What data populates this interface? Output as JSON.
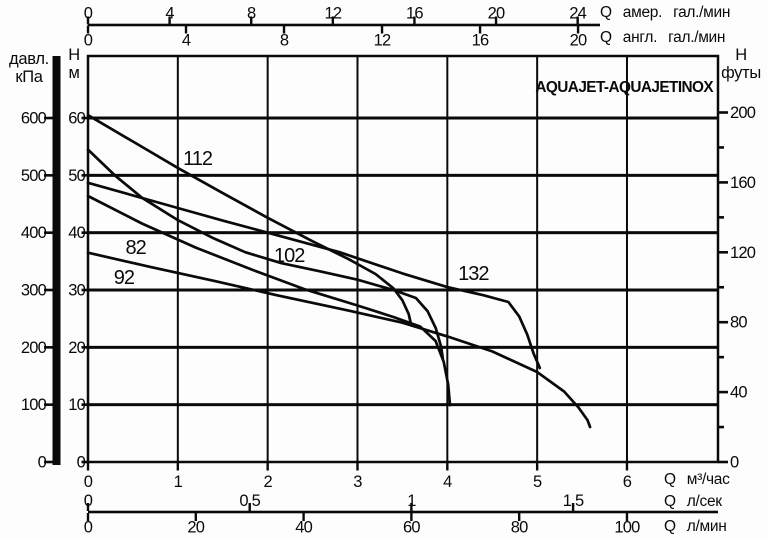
{
  "title": "AQUAJET-AQUAJETINOX",
  "axes": {
    "pressure_kpa": {
      "label_line1": "давл.",
      "label_line2": "кПа",
      "ticks": [
        0,
        100,
        200,
        300,
        400,
        500,
        600
      ]
    },
    "head_m": {
      "label_line1": "H",
      "label_line2": "м",
      "ticks": [
        0,
        10,
        20,
        30,
        40,
        50,
        60
      ]
    },
    "head_ft": {
      "label_line1": "H",
      "label_line2": "футы",
      "major_ticks": [
        0,
        40,
        80,
        120,
        160,
        200
      ],
      "minor_ticks": [
        20,
        60,
        100,
        140,
        180
      ]
    },
    "us_gpm": {
      "label": "Q амер. гал./мин",
      "ticks": [
        0,
        4,
        8,
        12,
        16,
        20,
        24
      ]
    },
    "imp_gpm": {
      "label": "Q англ. гал./мин",
      "ticks": [
        0,
        4,
        8,
        12,
        16,
        20
      ]
    },
    "m3h": {
      "label": "Q м³/час",
      "ticks": [
        0,
        1,
        2,
        3,
        4,
        5,
        6
      ]
    },
    "ls": {
      "label": "Q л/сек",
      "ticks": [
        {
          "v": 0,
          "t": "0"
        },
        {
          "v": 0.5,
          "t": "0,5"
        },
        {
          "v": 1,
          "t": "1"
        },
        {
          "v": 1.5,
          "t": "1,5"
        }
      ]
    },
    "lmin": {
      "label": "Q л/мин",
      "ticks": [
        0,
        20,
        40,
        60,
        80,
        100
      ]
    }
  },
  "chart_data": {
    "type": "line",
    "xlabel": "Q (м³/час)",
    "ylabel": "H (м)",
    "xlim": [
      0,
      7.0
    ],
    "ylim": [
      0,
      70.8
    ],
    "grid": {
      "x_step": 1,
      "y_step": 10
    },
    "line_color": "#0a0a0a",
    "series": [
      {
        "name": "112",
        "points": [
          [
            0,
            60.5
          ],
          [
            0.5,
            55.9
          ],
          [
            1.0,
            51.3
          ],
          [
            1.5,
            46.9
          ],
          [
            2.0,
            42.6
          ],
          [
            2.5,
            38.5
          ],
          [
            2.9,
            35.4
          ],
          [
            3.2,
            32.8
          ],
          [
            3.4,
            30.3
          ],
          [
            3.5,
            28.2
          ],
          [
            3.57,
            25.8
          ],
          [
            3.59,
            24.4
          ]
        ]
      },
      {
        "name": "102",
        "points": [
          [
            0,
            54.5
          ],
          [
            0.3,
            50.0
          ],
          [
            0.6,
            46.1
          ],
          [
            1.0,
            42.2
          ],
          [
            1.4,
            39.0
          ],
          [
            1.75,
            36.6
          ],
          [
            2.15,
            34.7
          ],
          [
            2.6,
            33.2
          ],
          [
            3.0,
            31.8
          ],
          [
            3.4,
            30.0
          ],
          [
            3.65,
            28.6
          ],
          [
            3.78,
            26.3
          ],
          [
            3.87,
            23.4
          ],
          [
            3.93,
            20.2
          ],
          [
            3.95,
            18.1
          ]
        ]
      },
      {
        "name": "132",
        "points": [
          [
            0,
            48.7
          ],
          [
            0.5,
            46.5
          ],
          [
            1.0,
            44.3
          ],
          [
            1.5,
            42.1
          ],
          [
            2.0,
            40.0
          ],
          [
            2.8,
            36.6
          ],
          [
            3.5,
            32.9
          ],
          [
            4.0,
            30.5
          ],
          [
            4.4,
            29.1
          ],
          [
            4.68,
            27.9
          ],
          [
            4.8,
            25.4
          ],
          [
            4.89,
            22.2
          ],
          [
            4.96,
            18.9
          ],
          [
            5.02,
            16.8
          ],
          [
            5.03,
            16.4
          ]
        ]
      },
      {
        "name": "92",
        "points": [
          [
            0,
            46.4
          ],
          [
            0.6,
            41.6
          ],
          [
            1.2,
            37.4
          ],
          [
            1.8,
            33.7
          ],
          [
            2.4,
            30.2
          ],
          [
            3.0,
            27.3
          ],
          [
            3.4,
            25.3
          ],
          [
            3.7,
            23.6
          ],
          [
            3.87,
            21.1
          ],
          [
            3.96,
            17.5
          ],
          [
            4.01,
            13.5
          ],
          [
            4.03,
            9.9
          ]
        ]
      },
      {
        "name": "82",
        "points": [
          [
            0,
            36.5
          ],
          [
            0.7,
            34.0
          ],
          [
            1.4,
            31.6
          ],
          [
            2.1,
            29.1
          ],
          [
            2.9,
            26.4
          ],
          [
            3.5,
            24.3
          ],
          [
            4.0,
            21.9
          ],
          [
            4.5,
            19.3
          ],
          [
            5.0,
            15.7
          ],
          [
            5.3,
            12.3
          ],
          [
            5.46,
            9.5
          ],
          [
            5.56,
            7.3
          ],
          [
            5.59,
            6.1
          ]
        ]
      }
    ],
    "curve_labels": [
      {
        "text": "112",
        "q": 1.22,
        "h": 53.0
      },
      {
        "text": "82",
        "q": 0.53,
        "h": 37.5
      },
      {
        "text": "92",
        "q": 0.4,
        "h": 32.3
      },
      {
        "text": "102",
        "q": 2.24,
        "h": 36.1
      },
      {
        "text": "132",
        "q": 4.29,
        "h": 33.0
      }
    ]
  }
}
